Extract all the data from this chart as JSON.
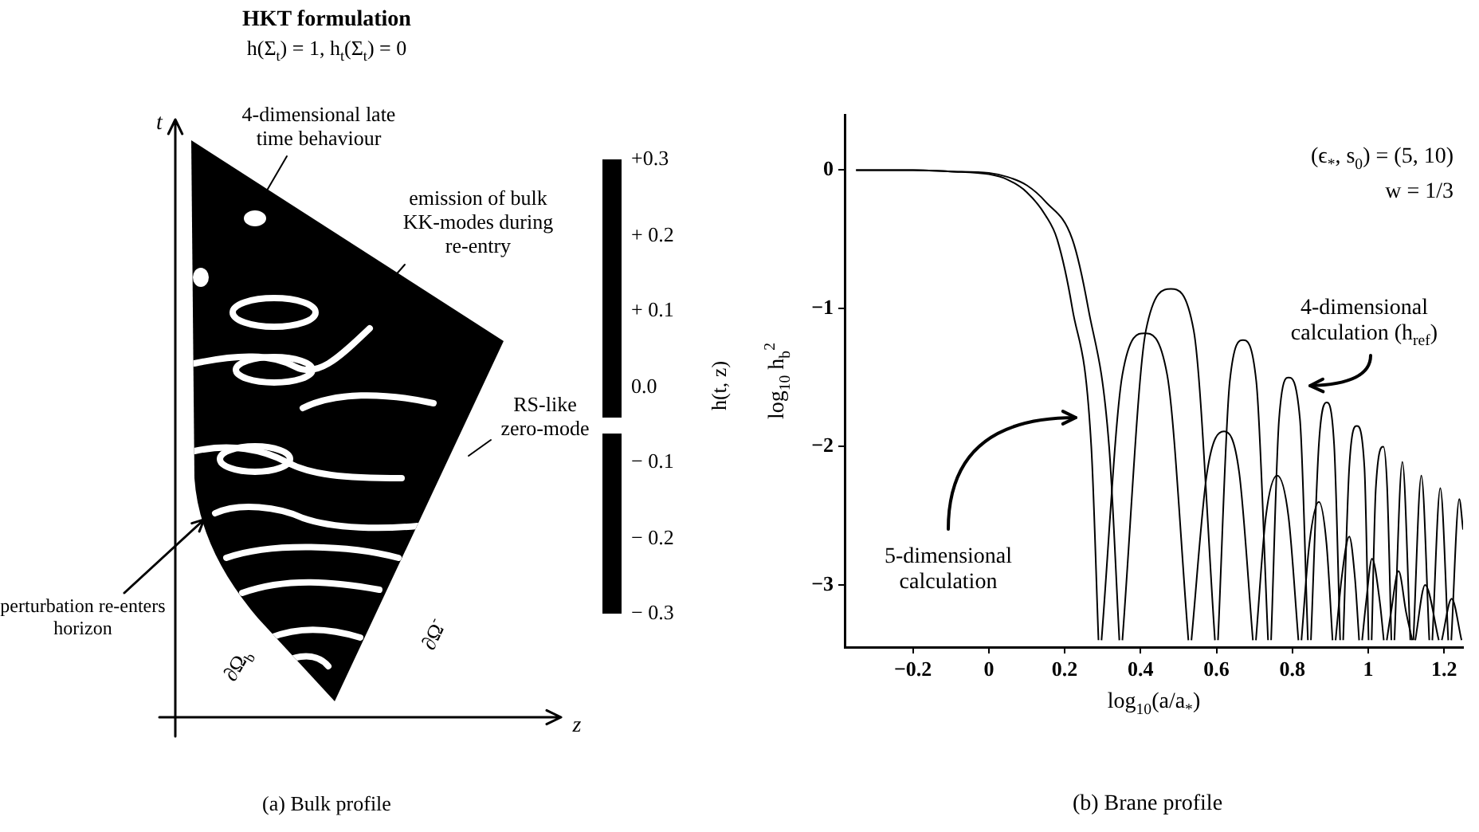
{
  "chart_data": [
    {
      "type": "other",
      "title": "HKT formulation",
      "subtitle": "h(Σ$_{t}$) = 1, h$_{t}$(Σ$_{t}$) = 0",
      "xlabel": "z",
      "ylabel": "t",
      "clabel": "h(t, z)",
      "annotations": [
        "4-dimensional late time behaviour",
        "emission of bulk KK-modes during re-entry",
        "RS-like zero-mode",
        "perturbation re-enters horizon",
        "∂Ω$_{b}$",
        "∂Ω$^{-}$",
        "(a)  Bulk profile",
        "+0.3",
        "+ 0.2",
        "+ 0.1",
        "0.0",
        "− 0.1",
        "− 0.2",
        "− 0.3"
      ]
    },
    {
      "type": "line",
      "xlabel": "log$_{10}$(a/a$_{*}$)",
      "ylabel": "log$_{10}$ h$_{b}$$^{2}$",
      "series": [
        {
          "color": "#000000",
          "x": [
            -0.35,
            -0.2,
            -0.1,
            0,
            0.05,
            0.1,
            0.15,
            0.18,
            0.22,
            0.27,
            0.289,
            0.293,
            0.297,
            0.352,
            0.41,
            0.47,
            0.526,
            0.53,
            0.534,
            0.575,
            0.62,
            0.66,
            0.696,
            0.7,
            0.704,
            0.73,
            0.76,
            0.79,
            0.816,
            0.82,
            0.824,
            0.845,
            0.87,
            0.89,
            0.906,
            0.91,
            0.914,
            0.93,
            0.95,
            0.965,
            0.976,
            0.98,
            0.984,
            0.995,
            1.01,
            1.03,
            1.041,
            1.045,
            1.049,
            1.06,
            1.08,
            1.1,
            1.116,
            1.12,
            1.124,
            1.15,
            1.186,
            1.19,
            1.194,
            1.22,
            1.246
          ],
          "values": [
            0,
            0,
            -0.01,
            -0.03,
            -0.07,
            -0.16,
            -0.33,
            -0.5,
            -1.0,
            -2.0,
            -3.4,
            null,
            -3.4,
            -1.48,
            -1.18,
            -1.48,
            -3.4,
            null,
            -3.4,
            -2.19,
            -1.89,
            -2.19,
            -3.4,
            null,
            -3.4,
            -2.51,
            -2.21,
            -2.51,
            -3.4,
            null,
            -3.4,
            -2.7,
            -2.4,
            -2.7,
            -3.4,
            null,
            -3.4,
            -2.95,
            -2.65,
            -2.95,
            -3.4,
            null,
            -3.4,
            -3.11,
            -2.81,
            -3.11,
            -3.4,
            null,
            -3.4,
            -3.2,
            -2.9,
            -3.2,
            -3.4,
            null,
            -3.4,
            -3.0,
            -3.4,
            null,
            -3.4,
            -3.1,
            -3.4
          ]
        },
        {
          "color": "#000000",
          "x": [
            -0.35,
            -0.2,
            -0.1,
            0,
            0.05,
            0.1,
            0.15,
            0.22,
            0.262,
            0.317,
            0.344,
            0.348,
            0.352,
            0.414,
            0.48,
            0.54,
            0.596,
            0.6,
            0.604,
            0.635,
            0.67,
            0.705,
            0.736,
            0.74,
            0.744,
            0.765,
            0.79,
            0.82,
            0.841,
            0.845,
            0.849,
            0.87,
            0.89,
            0.91,
            0.926,
            0.93,
            0.934,
            0.95,
            0.97,
            0.99,
            1.001,
            1.005,
            1.009,
            1.02,
            1.04,
            1.05,
            1.061,
            1.065,
            1.069,
            1.09,
            1.111,
            1.115,
            1.119,
            1.14,
            1.161,
            1.165,
            1.169,
            1.19,
            1.211,
            1.215,
            1.219,
            1.24,
            1.25
          ],
          "values": [
            0,
            0,
            -0.01,
            -0.02,
            -0.05,
            -0.11,
            -0.23,
            -0.5,
            -1.0,
            -2.0,
            -3.4,
            null,
            -3.4,
            -1.16,
            -0.86,
            -1.16,
            -3.4,
            null,
            -3.4,
            -1.53,
            -1.23,
            -1.53,
            -3.4,
            null,
            -3.4,
            -1.8,
            -1.5,
            -1.8,
            -3.4,
            null,
            -3.4,
            -1.98,
            -1.68,
            -1.98,
            -3.4,
            null,
            -3.4,
            -2.15,
            -1.85,
            -2.15,
            -3.4,
            null,
            -3.4,
            -2.3,
            -2.0,
            -2.3,
            -3.4,
            null,
            -3.4,
            -2.11,
            -3.4,
            null,
            -3.4,
            -2.21,
            -3.4,
            null,
            -3.4,
            -2.3,
            -3.4,
            null,
            -3.4,
            -2.38,
            -2.6
          ]
        }
      ],
      "xlim": [
        -0.38,
        1.25
      ],
      "ylim": [
        -3.45,
        0.4
      ],
      "xticks": [
        -0.2,
        0,
        0.2,
        0.4,
        0.6,
        0.8,
        1,
        1.2
      ],
      "yticks": [
        -3,
        -2,
        -1,
        0
      ],
      "annotations": [
        "(ϵ$_{*}$, s$_{0}$) = (5, 10)",
        "w = 1/3",
        "4-dimensional calculation (h$_{ref}$)",
        "5-dimensional calculation",
        "(b)  Brane profile"
      ],
      "grid": false,
      "legend": false,
      "marker": "none"
    }
  ]
}
